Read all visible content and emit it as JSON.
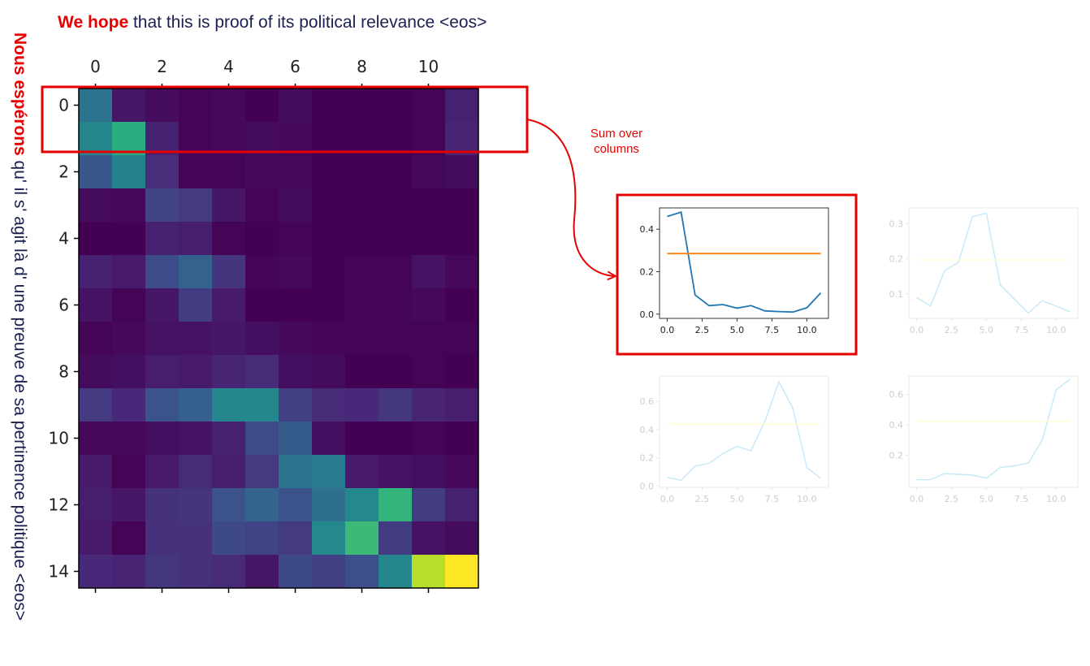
{
  "header": {
    "highlight": "We hope",
    "rest": " that this is proof of its political relevance <eos>"
  },
  "side": {
    "highlight": "Nous espérons",
    "rest": " qu' il s' agit là d' une preuve de sa pertinence politique <eos>"
  },
  "annotation": [
    "Sum over",
    "columns"
  ],
  "colors": {
    "accent_red": "#e60000",
    "line_blue": "#1f77b4",
    "line_orange": "#ff7f0e",
    "faint_blue": "#bfe6f8",
    "faint_yellow": "#ffffcc"
  },
  "chart_data": [
    {
      "type": "heatmap",
      "colormap": "viridis",
      "vmin": 0,
      "vmax": 1,
      "x_ticks": [
        0,
        2,
        4,
        6,
        8,
        10
      ],
      "y_ticks": [
        0,
        2,
        4,
        6,
        8,
        10,
        12,
        14
      ],
      "x_tick_position": "top",
      "values": [
        [
          0.38,
          0.06,
          0.03,
          0.01,
          0.02,
          0.0,
          0.03,
          0.0,
          0.0,
          0.0,
          0.01,
          0.09
        ],
        [
          0.46,
          0.62,
          0.09,
          0.01,
          0.02,
          0.03,
          0.02,
          0.0,
          0.0,
          0.0,
          0.01,
          0.1
        ],
        [
          0.27,
          0.44,
          0.13,
          0.01,
          0.01,
          0.02,
          0.02,
          0.0,
          0.0,
          0.0,
          0.02,
          0.03
        ],
        [
          0.03,
          0.02,
          0.2,
          0.17,
          0.06,
          0.01,
          0.03,
          0.0,
          0.0,
          0.0,
          0.0,
          0.0
        ],
        [
          0.0,
          0.0,
          0.09,
          0.08,
          0.01,
          0.0,
          0.01,
          0.0,
          0.0,
          0.0,
          0.0,
          0.0
        ],
        [
          0.09,
          0.07,
          0.23,
          0.31,
          0.15,
          0.01,
          0.02,
          0.0,
          0.01,
          0.01,
          0.05,
          0.02
        ],
        [
          0.05,
          0.01,
          0.06,
          0.18,
          0.07,
          0.0,
          0.0,
          0.0,
          0.01,
          0.01,
          0.02,
          0.0
        ],
        [
          0.01,
          0.02,
          0.05,
          0.05,
          0.06,
          0.04,
          0.02,
          0.01,
          0.01,
          0.01,
          0.01,
          0.01
        ],
        [
          0.03,
          0.04,
          0.08,
          0.07,
          0.1,
          0.12,
          0.04,
          0.03,
          0.0,
          0.0,
          0.01,
          0.0
        ],
        [
          0.17,
          0.11,
          0.26,
          0.3,
          0.46,
          0.46,
          0.19,
          0.12,
          0.11,
          0.16,
          0.1,
          0.08
        ],
        [
          0.02,
          0.02,
          0.04,
          0.05,
          0.09,
          0.23,
          0.29,
          0.04,
          0.0,
          0.0,
          0.01,
          0.0
        ],
        [
          0.07,
          0.01,
          0.07,
          0.12,
          0.08,
          0.17,
          0.38,
          0.41,
          0.07,
          0.05,
          0.04,
          0.02
        ],
        [
          0.08,
          0.06,
          0.14,
          0.15,
          0.25,
          0.32,
          0.25,
          0.36,
          0.47,
          0.65,
          0.18,
          0.09
        ],
        [
          0.07,
          0.01,
          0.14,
          0.14,
          0.22,
          0.2,
          0.17,
          0.47,
          0.68,
          0.18,
          0.05,
          0.03
        ],
        [
          0.11,
          0.1,
          0.16,
          0.14,
          0.12,
          0.06,
          0.22,
          0.19,
          0.24,
          0.46,
          0.89,
          1.0
        ]
      ]
    },
    {
      "type": "line",
      "x": [
        0,
        1,
        2,
        3,
        4,
        5,
        6,
        7,
        8,
        9,
        10,
        11
      ],
      "series": [
        {
          "values": [
            0.46,
            0.48,
            0.09,
            0.04,
            0.045,
            0.028,
            0.04,
            0.015,
            0.012,
            0.01,
            0.03,
            0.1
          ]
        },
        {
          "values": [
            0.285,
            0.285,
            0.285,
            0.285,
            0.285,
            0.285,
            0.285,
            0.285,
            0.285,
            0.285,
            0.285,
            0.285
          ]
        }
      ],
      "x_ticks": [
        "0.0",
        "2.5",
        "5.0",
        "7.5",
        "10.0"
      ],
      "y_ticks": [
        "0.0",
        "0.2",
        "0.4"
      ],
      "xlim": [
        -0.55,
        11.55
      ],
      "ylim": [
        -0.02,
        0.5
      ]
    },
    {
      "type": "line",
      "x": [
        0,
        1,
        2,
        3,
        4,
        5,
        6,
        7,
        8,
        9,
        10,
        11
      ],
      "series": [
        {
          "values": [
            0.09,
            0.065,
            0.165,
            0.19,
            0.32,
            0.33,
            0.125,
            0.085,
            0.045,
            0.08,
            0.065,
            0.048
          ]
        },
        {
          "values": [
            0.197,
            0.197,
            0.197,
            0.197,
            0.197,
            0.197,
            0.197,
            0.197,
            0.197,
            0.197,
            0.197,
            0.197
          ]
        }
      ],
      "x_ticks": [
        "0.0",
        "2.5",
        "5.0",
        "7.5",
        "10.0"
      ],
      "y_ticks": [
        "0.1",
        "0.2",
        "0.3"
      ],
      "xlim": [
        -0.55,
        11.55
      ],
      "ylim": [
        0.03,
        0.345
      ]
    },
    {
      "type": "line",
      "x": [
        0,
        1,
        2,
        3,
        4,
        5,
        6,
        7,
        8,
        9,
        10,
        11
      ],
      "series": [
        {
          "values": [
            0.06,
            0.04,
            0.14,
            0.16,
            0.23,
            0.28,
            0.25,
            0.46,
            0.74,
            0.55,
            0.13,
            0.055
          ]
        },
        {
          "values": [
            0.44,
            0.44,
            0.44,
            0.44,
            0.44,
            0.44,
            0.44,
            0.44,
            0.44,
            0.44,
            0.44,
            0.44
          ]
        }
      ],
      "x_ticks": [
        "0.0",
        "2.5",
        "5.0",
        "7.5",
        "10.0"
      ],
      "y_ticks": [
        "0.0",
        "0.2",
        "0.4",
        "0.6"
      ],
      "xlim": [
        -0.55,
        11.55
      ],
      "ylim": [
        -0.01,
        0.78
      ]
    },
    {
      "type": "line",
      "x": [
        0,
        1,
        2,
        3,
        4,
        5,
        6,
        7,
        8,
        9,
        10,
        11
      ],
      "series": [
        {
          "values": [
            0.04,
            0.04,
            0.08,
            0.075,
            0.07,
            0.05,
            0.12,
            0.13,
            0.15,
            0.3,
            0.63,
            0.7
          ]
        },
        {
          "values": [
            0.425,
            0.425,
            0.425,
            0.425,
            0.425,
            0.425,
            0.425,
            0.425,
            0.425,
            0.425,
            0.425,
            0.425
          ]
        }
      ],
      "x_ticks": [
        "0.0",
        "2.5",
        "5.0",
        "7.5",
        "10.0"
      ],
      "y_ticks": [
        "0.2",
        "0.4",
        "0.6"
      ],
      "xlim": [
        -0.55,
        11.55
      ],
      "ylim": [
        -0.01,
        0.72
      ]
    }
  ]
}
